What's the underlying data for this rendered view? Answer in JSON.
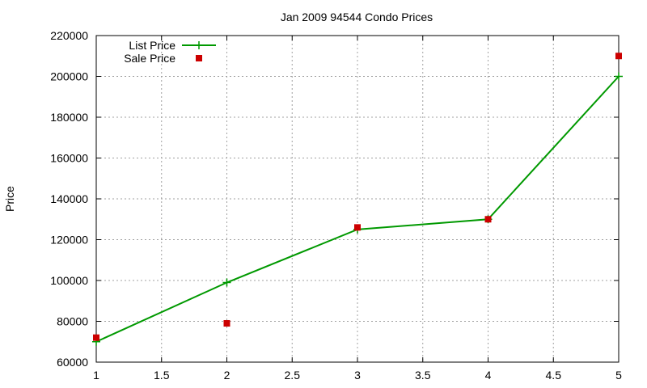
{
  "chart_data": {
    "type": "line",
    "title": "Jan 2009 94544 Condo Prices",
    "xlabel": "",
    "ylabel": "Price",
    "xlim": [
      1,
      5
    ],
    "ylim": [
      60000,
      220000
    ],
    "x_ticks": [
      1,
      1.5,
      2,
      2.5,
      3,
      3.5,
      4,
      4.5,
      5
    ],
    "y_ticks": [
      60000,
      80000,
      100000,
      120000,
      140000,
      160000,
      180000,
      200000,
      220000
    ],
    "grid": true,
    "legend_position": "top-left",
    "series": [
      {
        "name": "List Price",
        "style": "line-points",
        "marker": "plus",
        "color": "#009900",
        "points": [
          [
            1,
            70000
          ],
          [
            2,
            99000
          ],
          [
            3,
            125000
          ],
          [
            4,
            130000
          ],
          [
            5,
            200000
          ]
        ]
      },
      {
        "name": "Sale Price",
        "style": "points",
        "marker": "square",
        "color": "#cc0000",
        "points": [
          [
            1,
            72000
          ],
          [
            2,
            79000
          ],
          [
            3,
            126000
          ],
          [
            4,
            130000
          ],
          [
            5,
            210000
          ]
        ]
      }
    ]
  }
}
